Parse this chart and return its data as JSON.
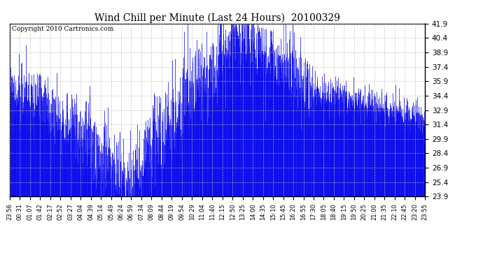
{
  "title": "Wind Chill per Minute (Last 24 Hours)  20100329",
  "copyright": "Copyright 2010 Cartronics.com",
  "line_color": "#0000EE",
  "bg_color": "#ffffff",
  "plot_bg_color": "#ffffff",
  "grid_color": "#bbbbbb",
  "ylim": [
    23.9,
    41.9
  ],
  "yticks": [
    23.9,
    25.4,
    26.9,
    28.4,
    29.9,
    31.4,
    32.9,
    34.4,
    35.9,
    37.4,
    38.9,
    40.4,
    41.9
  ],
  "xtick_labels": [
    "23:56",
    "00:31",
    "01:07",
    "01:42",
    "02:17",
    "02:52",
    "03:27",
    "04:04",
    "04:39",
    "05:14",
    "05:49",
    "06:24",
    "06:59",
    "07:34",
    "08:09",
    "08:44",
    "09:19",
    "09:54",
    "10:29",
    "11:04",
    "11:40",
    "12:15",
    "12:50",
    "13:25",
    "14:00",
    "14:35",
    "15:10",
    "15:45",
    "16:20",
    "16:55",
    "17:30",
    "18:05",
    "18:40",
    "19:15",
    "19:50",
    "20:25",
    "21:00",
    "21:35",
    "22:10",
    "22:45",
    "23:20",
    "23:55"
  ],
  "n_points": 1440,
  "seed": 99
}
